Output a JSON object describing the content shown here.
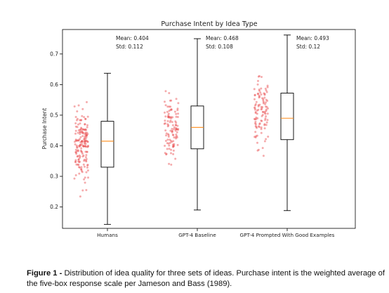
{
  "chart_data": {
    "type": "box",
    "title": "Purchase Intent by Idea Type",
    "ylabel": "Purchase Intent",
    "xlabel": "",
    "ylim": [
      0.13,
      0.78
    ],
    "yticks": [
      "0.2",
      "0.3",
      "0.4",
      "0.5",
      "0.6",
      "0.7"
    ],
    "grid": false,
    "categories": [
      "Humans",
      "GPT-4 Baseline",
      "GPT-4 Prompted With Good Examples"
    ],
    "boxes": [
      {
        "category": "Humans",
        "whisker_low": 0.143,
        "q1": 0.33,
        "median": 0.415,
        "q3": 0.48,
        "whisker_high": 0.637,
        "mean_label": "Mean: 0.404",
        "std_label": "Std: 0.112"
      },
      {
        "category": "GPT-4 Baseline",
        "whisker_low": 0.19,
        "q1": 0.39,
        "median": 0.46,
        "q3": 0.53,
        "whisker_high": 0.75,
        "mean_label": "Mean: 0.468",
        "std_label": "Std: 0.108"
      },
      {
        "category": "GPT-4 Prompted With Good Examples",
        "whisker_low": 0.188,
        "q1": 0.42,
        "median": 0.49,
        "q3": 0.572,
        "whisker_high": 0.762,
        "mean_label": "Mean: 0.493",
        "std_label": "Std: 0.12"
      }
    ],
    "colors": {
      "points": "#e8464a",
      "median": "#ff8c1a",
      "box": "#000000"
    }
  },
  "caption": {
    "label": "Figure 1 -",
    "text": " Distribution of idea quality for three sets of ideas. Purchase intent is the weighted average of the five-box response scale per Jameson and Bass (1989)."
  }
}
